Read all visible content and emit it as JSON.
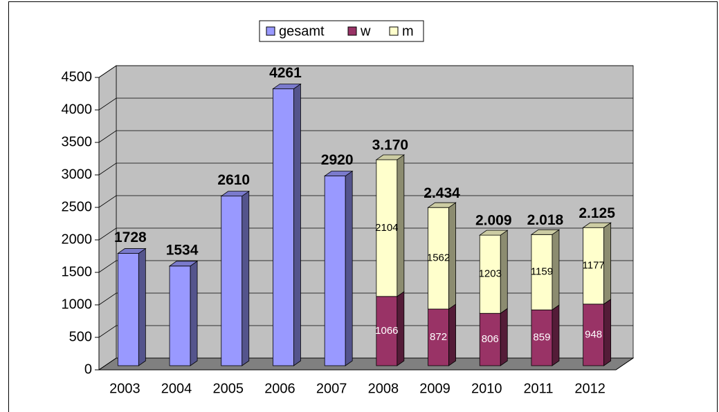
{
  "chart_data": {
    "type": "bar3d_stacked",
    "categories": [
      "2003",
      "2004",
      "2005",
      "2006",
      "2007",
      "2008",
      "2009",
      "2010",
      "2011",
      "2012"
    ],
    "series": [
      {
        "name": "gesamt",
        "color": "#9999ff",
        "values": [
          1728,
          1534,
          2610,
          4261,
          2920,
          null,
          null,
          null,
          null,
          null
        ]
      },
      {
        "name": "w",
        "color": "#993366",
        "values": [
          null,
          null,
          null,
          null,
          null,
          1066,
          872,
          806,
          859,
          948
        ]
      },
      {
        "name": "m",
        "color": "#ffffcc",
        "values": [
          null,
          null,
          null,
          null,
          null,
          2104,
          1562,
          1203,
          1159,
          1177
        ]
      }
    ],
    "annotations": [
      {
        "x": "2008",
        "y": 3170,
        "text": "3.170"
      },
      {
        "x": "2009",
        "y": 2434,
        "text": "2.434"
      },
      {
        "x": "2010",
        "y": 2009,
        "text": "2.009"
      },
      {
        "x": "2011",
        "y": 2018,
        "text": "2.018"
      },
      {
        "x": "2012",
        "y": 2125,
        "text": "2.125"
      }
    ],
    "ylim": [
      0,
      4500
    ],
    "yticks": [
      0,
      500,
      1000,
      1500,
      2000,
      2500,
      3000,
      3500,
      4000,
      4500
    ],
    "grid": true,
    "legend": "top"
  }
}
